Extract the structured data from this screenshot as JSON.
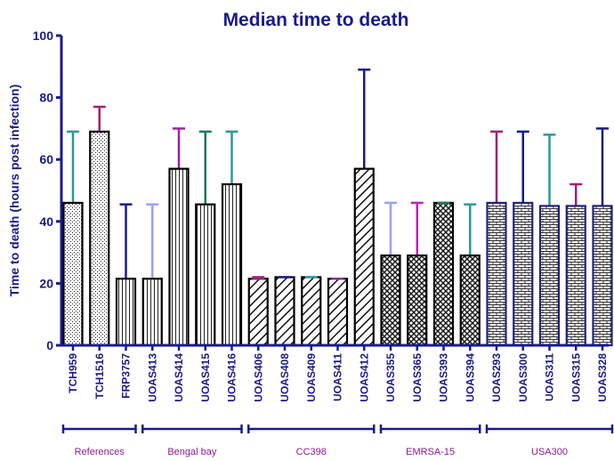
{
  "chart_data": {
    "type": "bar",
    "title": "Median time to death",
    "ylabel": "Time to death (hours post infection)",
    "xlabel": "",
    "ylim": [
      0,
      100
    ],
    "yticks": [
      0,
      20,
      40,
      60,
      80,
      100
    ],
    "categories": [
      "TCH959",
      "TCH1516",
      "FRP3757",
      "UOAS413",
      "UOAS414",
      "UOAS415",
      "UOAS416",
      "UOAS406",
      "UOAS408",
      "UOAS409",
      "UOAS411",
      "UOAS412",
      "UOAS355",
      "UOAS365",
      "UOAS393",
      "UOAS394",
      "UOAS293",
      "UOAS300",
      "UOAS311",
      "UOAS315",
      "UOAS328"
    ],
    "values": [
      46,
      69,
      21.5,
      21.5,
      57,
      45.5,
      52,
      21.5,
      22,
      22,
      21.5,
      57,
      29,
      29,
      46,
      29,
      46,
      46,
      45,
      45,
      45
    ],
    "error_upper": [
      69,
      77,
      45.5,
      45.5,
      70,
      69,
      69,
      22,
      22,
      22,
      21.5,
      89,
      46,
      46,
      46,
      45.5,
      69,
      69,
      68,
      52,
      70
    ],
    "error_colors": [
      "#2a9a9a",
      "#a0207a",
      "#1a1a8c",
      "#9aa2ee",
      "#a020a0",
      "#1a7a5a",
      "#2a9a9a",
      "#a0207a",
      "#1a1a8c",
      "#2a9a9a",
      "#a020a0",
      "#1a1a8c",
      "#9aa2ee",
      "#c020c0",
      "#1a7a5a",
      "#2a9a9a",
      "#a0207a",
      "#1a1a8c",
      "#2a9a9a",
      "#a0207a",
      "#1a1a8c"
    ],
    "patterns": [
      "dots",
      "dots",
      "vlines",
      "vlines",
      "vlines",
      "vlines",
      "vlines",
      "diag",
      "diag",
      "diag",
      "diag",
      "diag",
      "cross",
      "cross",
      "cross",
      "cross",
      "brick",
      "brick",
      "brick",
      "brick",
      "brick"
    ],
    "groups": [
      {
        "label": "References",
        "start": 0,
        "end": 2
      },
      {
        "label": "Bengal bay",
        "start": 3,
        "end": 6
      },
      {
        "label": "CC398",
        "start": 7,
        "end": 11
      },
      {
        "label": "EMRSA-15",
        "start": 12,
        "end": 15
      },
      {
        "label": "USA300",
        "start": 16,
        "end": 20
      }
    ],
    "grid": false
  },
  "colors": {
    "axis": "#1a1a8c",
    "title": "#1a1a8c",
    "group_label": "#8e1a8e",
    "bar_outline": "#000000"
  }
}
